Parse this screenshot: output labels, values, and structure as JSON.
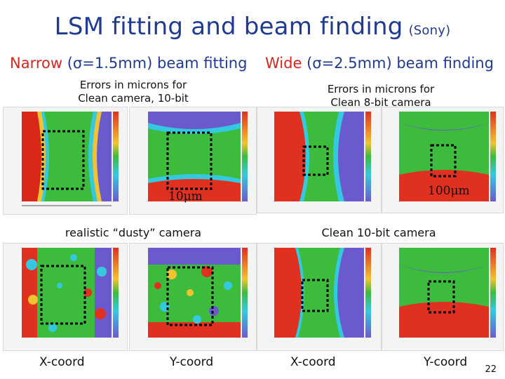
{
  "title": {
    "main": "LSM fitting and beam finding",
    "vendor": "(Sony)"
  },
  "left_header": {
    "label": "Narrow",
    "detail": "(σ=1.5mm) beam fitting"
  },
  "right_header": {
    "label": "Wide",
    "detail": "(σ=2.5mm) beam finding"
  },
  "captions": {
    "top_left": [
      "Errors in microns for",
      "Clean camera, 10-bit"
    ],
    "top_right": [
      "Errors in microns for",
      "Clean 8-bit camera"
    ],
    "bottom_left": "realistic “dusty” camera",
    "bottom_right": "Clean 10-bit camera"
  },
  "scale_labels": {
    "left": "10μm",
    "right": "100μm"
  },
  "axis_labels": [
    "X-coord",
    "Y-coord",
    "X-coord",
    "Y-coord"
  ],
  "page_number": "22",
  "colors": {
    "title": "#1f3a93",
    "accent_red": "#d8261c",
    "map_green": "#3dbb3d",
    "map_purple": "#6a5acd",
    "map_red": "#e03020",
    "map_cyan": "#35c9e0"
  }
}
